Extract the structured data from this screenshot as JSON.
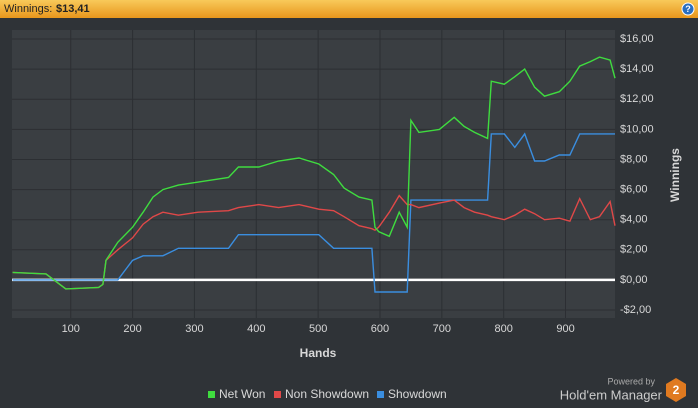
{
  "header": {
    "label": "Winnings:",
    "value": "$13,41"
  },
  "branding": {
    "powered": "Powered by",
    "product": "Hold'em Manager",
    "version": "2"
  },
  "chart_data": {
    "type": "line",
    "x_label": "Hands",
    "y_label": "Winnings",
    "x": [
      6,
      60,
      92,
      145,
      152,
      157,
      176,
      200,
      217,
      233,
      249,
      274,
      306,
      355,
      371,
      404,
      436,
      469,
      501,
      525,
      542,
      566,
      587,
      592,
      598,
      615,
      631,
      644,
      650,
      663,
      696,
      720,
      736,
      753,
      774,
      780,
      801,
      818,
      834,
      850,
      866,
      890,
      907,
      923,
      940,
      955,
      972,
      980
    ],
    "series": [
      {
        "name": "Net Won",
        "color": "#3fdc3f",
        "values": [
          0.5,
          0.4,
          -0.6,
          -0.5,
          -0.3,
          1.3,
          2.5,
          3.5,
          4.5,
          5.5,
          6.0,
          6.3,
          6.5,
          6.8,
          7.5,
          7.5,
          7.9,
          8.1,
          7.7,
          7.0,
          6.1,
          5.5,
          5.3,
          3.5,
          3.2,
          2.9,
          4.5,
          3.5,
          10.6,
          9.8,
          10.0,
          10.8,
          10.2,
          9.8,
          9.4,
          13.2,
          13.0,
          13.5,
          14.0,
          12.8,
          12.2,
          12.5,
          13.2,
          14.2,
          14.5,
          14.8,
          14.6,
          13.4
        ]
      },
      {
        "name": "Non Showdown",
        "color": "#e04848",
        "values": [
          0.5,
          0.4,
          -0.6,
          -0.5,
          -0.3,
          1.3,
          2.0,
          2.8,
          3.7,
          4.2,
          4.5,
          4.3,
          4.5,
          4.6,
          4.8,
          5.0,
          4.8,
          5.0,
          4.7,
          4.6,
          4.2,
          3.6,
          3.4,
          3.3,
          3.5,
          4.5,
          5.6,
          5.0,
          5.0,
          4.8,
          5.1,
          5.3,
          4.8,
          4.5,
          4.3,
          4.2,
          4.0,
          4.3,
          4.7,
          4.4,
          4.0,
          4.1,
          3.9,
          5.4,
          4.0,
          4.2,
          5.2,
          3.6
        ]
      },
      {
        "name": "Showdown",
        "color": "#3a8ee0",
        "values": [
          0,
          0,
          0,
          0,
          0,
          0,
          0,
          1.3,
          1.6,
          1.6,
          1.6,
          2.1,
          2.1,
          2.1,
          3.0,
          3.0,
          3.0,
          3.0,
          3.0,
          2.1,
          2.1,
          2.1,
          2.1,
          -0.8,
          -0.8,
          -0.8,
          -0.8,
          -0.8,
          5.3,
          5.3,
          5.3,
          5.3,
          5.3,
          5.3,
          5.3,
          9.7,
          9.7,
          8.8,
          9.7,
          7.9,
          7.9,
          8.3,
          8.3,
          9.7,
          9.7,
          9.7,
          9.7,
          9.7
        ]
      }
    ],
    "xlim": [
      5,
      980
    ],
    "xticks": [
      100,
      200,
      300,
      400,
      500,
      600,
      700,
      800,
      900
    ],
    "ylim": [
      -2.53,
      16.6
    ],
    "yticks": [
      {
        "value": -2,
        "label": "-$2,00"
      },
      {
        "value": 0,
        "label": "$0,00"
      },
      {
        "value": 2,
        "label": "$2,00"
      },
      {
        "value": 4,
        "label": "$4,00"
      },
      {
        "value": 6,
        "label": "$6,00"
      },
      {
        "value": 8,
        "label": "$8,00"
      },
      {
        "value": 10,
        "label": "$10,00"
      },
      {
        "value": 12,
        "label": "$12,00"
      },
      {
        "value": 14,
        "label": "$14,00"
      },
      {
        "value": 16,
        "label": "$16,00"
      }
    ],
    "grid": true,
    "zero_line": 0
  }
}
